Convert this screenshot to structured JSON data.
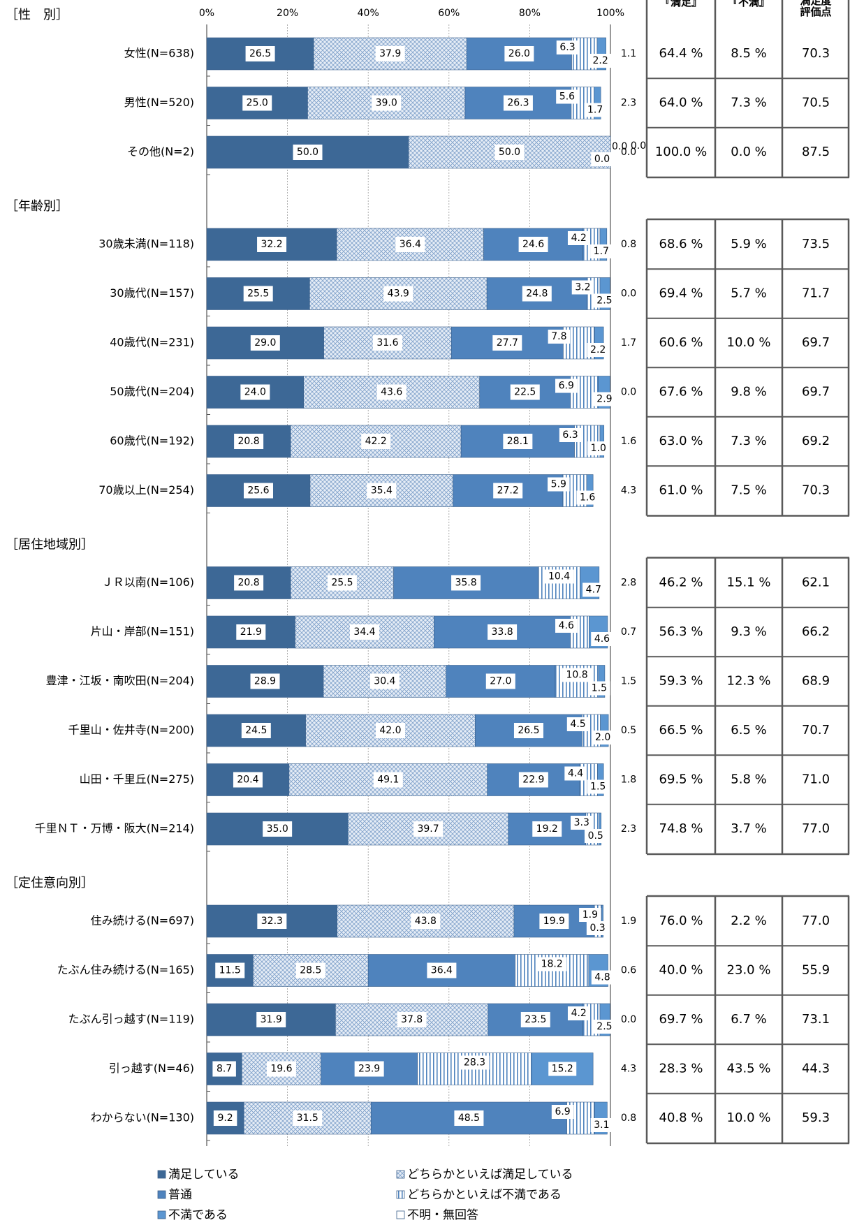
{
  "colors": {
    "satisfied": "#3d6896",
    "somewhat_satisfied": "#dde6f1",
    "neutral": "#4f83bd",
    "somewhat_dissatisfied": "#4f83bd",
    "dissatisfied": "#5b96d1",
    "no_answer": "#ffffff",
    "grid": "#999999",
    "table_border": "#595959"
  },
  "chart_data": {
    "type": "bar",
    "orientation": "horizontal",
    "stacked": true,
    "percent": true,
    "xlim": [
      0,
      100
    ],
    "x_ticks": [
      "0%",
      "20%",
      "40%",
      "60%",
      "80%",
      "100%"
    ],
    "series": [
      {
        "name": "満足している",
        "key": "satisfied"
      },
      {
        "name": "どちらかといえば満足している",
        "key": "somewhat_satisfied"
      },
      {
        "name": "普通",
        "key": "neutral"
      },
      {
        "name": "どちらかといえば不満である",
        "key": "somewhat_dissatisfied"
      },
      {
        "name": "不満である",
        "key": "dissatisfied"
      },
      {
        "name": "不明・無回答",
        "key": "no_answer"
      }
    ],
    "table_headers": [
      "『満足』",
      "『不満』",
      "満足度\n評価点"
    ],
    "legend_position": "bottom",
    "groups": [
      {
        "label": "［性　別］",
        "rows": [
          {
            "label": "女性(N=638)",
            "values": [
              26.5,
              37.9,
              26.0,
              6.3,
              2.2,
              1.1
            ],
            "satisfied": "64.4 %",
            "dissatisfied": "8.5 %",
            "score": "70.3"
          },
          {
            "label": "男性(N=520)",
            "values": [
              25.0,
              39.0,
              26.3,
              5.6,
              1.7,
              2.3
            ],
            "satisfied": "64.0 %",
            "dissatisfied": "7.3 %",
            "score": "70.5"
          },
          {
            "label": "その他(N=2)",
            "values": [
              50.0,
              50.0,
              0.0,
              0.0,
              0.0,
              0.0
            ],
            "satisfied": "100.0 %",
            "dissatisfied": "0.0 %",
            "score": "87.5"
          }
        ]
      },
      {
        "label": "［年齢別］",
        "rows": [
          {
            "label": "30歳未満(N=118)",
            "values": [
              32.2,
              36.4,
              24.6,
              4.2,
              1.7,
              0.8
            ],
            "satisfied": "68.6 %",
            "dissatisfied": "5.9 %",
            "score": "73.5"
          },
          {
            "label": "30歳代(N=157)",
            "values": [
              25.5,
              43.9,
              24.8,
              3.2,
              2.5,
              0.0
            ],
            "satisfied": "69.4 %",
            "dissatisfied": "5.7 %",
            "score": "71.7"
          },
          {
            "label": "40歳代(N=231)",
            "values": [
              29.0,
              31.6,
              27.7,
              7.8,
              2.2,
              1.7
            ],
            "satisfied": "60.6 %",
            "dissatisfied": "10.0 %",
            "score": "69.7"
          },
          {
            "label": "50歳代(N=204)",
            "values": [
              24.0,
              43.6,
              22.5,
              6.9,
              2.9,
              0.0
            ],
            "satisfied": "67.6 %",
            "dissatisfied": "9.8 %",
            "score": "69.7"
          },
          {
            "label": "60歳代(N=192)",
            "values": [
              20.8,
              42.2,
              28.1,
              6.3,
              1.0,
              1.6
            ],
            "satisfied": "63.0 %",
            "dissatisfied": "7.3 %",
            "score": "69.2"
          },
          {
            "label": "70歳以上(N=254)",
            "values": [
              25.6,
              35.4,
              27.2,
              5.9,
              1.6,
              4.3
            ],
            "satisfied": "61.0 %",
            "dissatisfied": "7.5 %",
            "score": "70.3"
          }
        ]
      },
      {
        "label": "［居住地域別］",
        "rows": [
          {
            "label": "ＪＲ以南(N=106)",
            "values": [
              20.8,
              25.5,
              35.8,
              10.4,
              4.7,
              2.8
            ],
            "satisfied": "46.2 %",
            "dissatisfied": "15.1 %",
            "score": "62.1"
          },
          {
            "label": "片山・岸部(N=151)",
            "values": [
              21.9,
              34.4,
              33.8,
              4.6,
              4.6,
              0.7
            ],
            "satisfied": "56.3 %",
            "dissatisfied": "9.3 %",
            "score": "66.2"
          },
          {
            "label": "豊津・江坂・南吹田(N=204)",
            "values": [
              28.9,
              30.4,
              27.0,
              10.8,
              1.5,
              1.5
            ],
            "satisfied": "59.3 %",
            "dissatisfied": "12.3 %",
            "score": "68.9"
          },
          {
            "label": "千里山・佐井寺(N=200)",
            "values": [
              24.5,
              42.0,
              26.5,
              4.5,
              2.0,
              0.5
            ],
            "satisfied": "66.5 %",
            "dissatisfied": "6.5 %",
            "score": "70.7"
          },
          {
            "label": "山田・千里丘(N=275)",
            "values": [
              20.4,
              49.1,
              22.9,
              4.4,
              1.5,
              1.8
            ],
            "satisfied": "69.5 %",
            "dissatisfied": "5.8 %",
            "score": "71.0"
          },
          {
            "label": "千里ＮＴ・万博・阪大(N=214)",
            "values": [
              35.0,
              39.7,
              19.2,
              3.3,
              0.5,
              2.3
            ],
            "satisfied": "74.8 %",
            "dissatisfied": "3.7 %",
            "score": "77.0"
          }
        ]
      },
      {
        "label": "［定住意向別］",
        "rows": [
          {
            "label": "住み続ける(N=697)",
            "values": [
              32.3,
              43.8,
              19.9,
              1.9,
              0.3,
              1.9
            ],
            "satisfied": "76.0 %",
            "dissatisfied": "2.2 %",
            "score": "77.0"
          },
          {
            "label": "たぶん住み続ける(N=165)",
            "values": [
              11.5,
              28.5,
              36.4,
              18.2,
              4.8,
              0.6
            ],
            "satisfied": "40.0 %",
            "dissatisfied": "23.0 %",
            "score": "55.9"
          },
          {
            "label": "たぶん引っ越す(N=119)",
            "values": [
              31.9,
              37.8,
              23.5,
              4.2,
              2.5,
              0.0
            ],
            "satisfied": "69.7 %",
            "dissatisfied": "6.7 %",
            "score": "73.1"
          },
          {
            "label": "引っ越す(N=46)",
            "values": [
              8.7,
              19.6,
              23.9,
              28.3,
              15.2,
              4.3
            ],
            "satisfied": "28.3 %",
            "dissatisfied": "43.5 %",
            "score": "44.3"
          },
          {
            "label": "わからない(N=130)",
            "values": [
              9.2,
              31.5,
              48.5,
              6.9,
              3.1,
              0.8
            ],
            "satisfied": "40.8 %",
            "dissatisfied": "10.0 %",
            "score": "59.3"
          }
        ]
      }
    ]
  }
}
